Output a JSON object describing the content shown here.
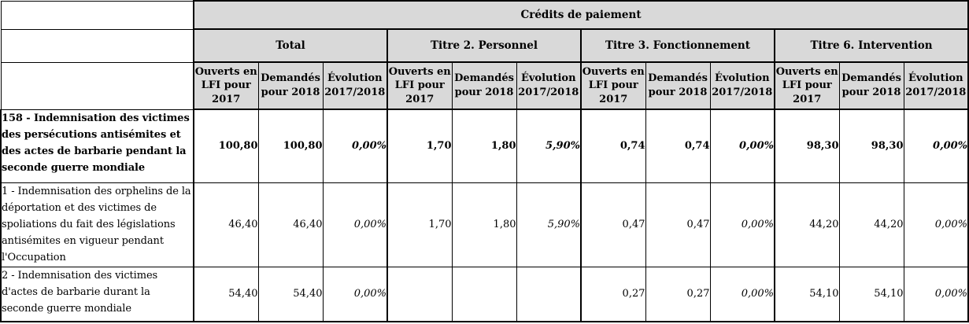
{
  "table": {
    "title": "Crédits de paiement",
    "groups": [
      {
        "label": "Total",
        "columns": [
          "Ouverts en LFI pour 2017",
          "Demandés pour 2018",
          "Évolution 2017/2018"
        ]
      },
      {
        "label": "Titre 2. Personnel",
        "columns": [
          "Ouverts en LFI pour 2017",
          "Demandés pour 2018",
          "Évolution 2017/2018"
        ]
      },
      {
        "label": "Titre 3. Fonctionnement",
        "columns": [
          "Ouverts en LFI pour 2017",
          "Demandés pour 2018",
          "Évolution 2017/2018"
        ]
      },
      {
        "label": "Titre 6. Intervention",
        "columns": [
          "Ouverts en LFI pour 2017",
          "Demandés pour 2018",
          "Évolution 2017/2018"
        ]
      }
    ],
    "rows": [
      {
        "label": "158 - Indemnisation des victimes des persécutions antisémites et des actes de barbarie pendant la seconde guerre mondiale",
        "emphasis": true,
        "values": [
          "100,80",
          "100,80",
          "0,00%",
          "1,70",
          "1,80",
          "5,90%",
          "0,74",
          "0,74",
          "0,00%",
          "98,30",
          "98,30",
          "0,00%"
        ]
      },
      {
        "label": "1 - Indemnisation des orphelins de la déportation et des victimes de spoliations du fait des législations antisémites en vigueur pendant l'Occupation",
        "emphasis": false,
        "values": [
          "46,40",
          "46,40",
          "0,00%",
          "1,70",
          "1,80",
          "5,90%",
          "0,47",
          "0,47",
          "0,00%",
          "44,20",
          "44,20",
          "0,00%"
        ]
      },
      {
        "label": "2 - Indemnisation des victimes d'actes de barbarie durant la seconde guerre mondiale",
        "emphasis": false,
        "values": [
          "54,40",
          "54,40",
          "0,00%",
          "",
          "",
          "",
          "0,27",
          "0,27",
          "0,00%",
          "54,10",
          "54,10",
          "0,00%"
        ]
      }
    ]
  }
}
